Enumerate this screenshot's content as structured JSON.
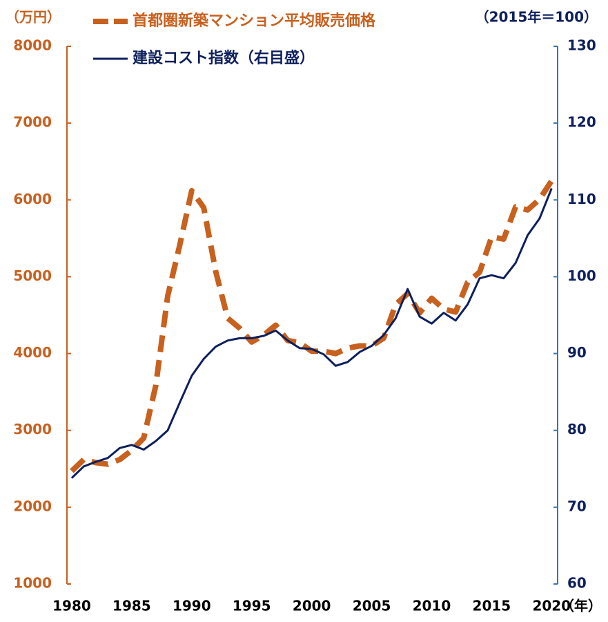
{
  "chart_data": {
    "type": "line",
    "y_unit": "（万円）",
    "y2_unit": "（2015年＝100）",
    "x_unit": "（年）",
    "x": [
      1980,
      1981,
      1982,
      1983,
      1984,
      1985,
      1986,
      1987,
      1988,
      1989,
      1990,
      1991,
      1992,
      1993,
      1994,
      1995,
      1996,
      1997,
      1998,
      1999,
      2000,
      2001,
      2002,
      2003,
      2004,
      2005,
      2006,
      2007,
      2008,
      2009,
      2010,
      2011,
      2012,
      2013,
      2014,
      2015,
      2016,
      2017,
      2018,
      2019,
      2020
    ],
    "series": [
      {
        "name": "首都圏新築マンション平均販売価格",
        "color": "#c8601e",
        "style": "dashed",
        "values": [
          2470,
          2620,
          2580,
          2560,
          2620,
          2740,
          2900,
          3580,
          4750,
          5410,
          6120,
          5900,
          5070,
          4460,
          4330,
          4150,
          4240,
          4370,
          4170,
          4140,
          4030,
          4030,
          4000,
          4070,
          4100,
          4100,
          4200,
          4640,
          4780,
          4530,
          4720,
          4580,
          4540,
          4930,
          5060,
          5520,
          5490,
          5910,
          5870,
          6010,
          6250
        ]
      },
      {
        "name": "建設コスト指数（右目盛）",
        "color": "#0d1f5c",
        "style": "solid",
        "axis": "y2",
        "values": [
          73.8,
          75.3,
          75.9,
          76.4,
          77.7,
          78.1,
          77.5,
          78.6,
          80.0,
          83.6,
          87.1,
          89.3,
          90.9,
          91.7,
          92.0,
          92.0,
          92.3,
          93.0,
          91.7,
          90.7,
          90.6,
          89.9,
          88.4,
          88.9,
          90.2,
          91.0,
          92.4,
          94.6,
          98.4,
          94.8,
          93.9,
          95.3,
          94.3,
          96.4,
          99.8,
          100.2,
          99.8,
          101.8,
          105.4,
          107.6,
          111.5
        ]
      }
    ],
    "xlim": [
      1979.6,
      2020.5
    ],
    "xticks": [
      1980,
      1985,
      1990,
      1995,
      2000,
      2005,
      2010,
      2015,
      2020
    ],
    "ylim": [
      1000,
      8000
    ],
    "yticks": [
      1000,
      2000,
      3000,
      4000,
      5000,
      6000,
      7000,
      8000
    ],
    "y_color": "#c8601e",
    "y2lim": [
      60,
      130
    ],
    "y2ticks": [
      60,
      70,
      80,
      90,
      100,
      110,
      120,
      130
    ],
    "y2_color": "#0d1f5c",
    "y2_axis_color": "#2e75b6"
  }
}
